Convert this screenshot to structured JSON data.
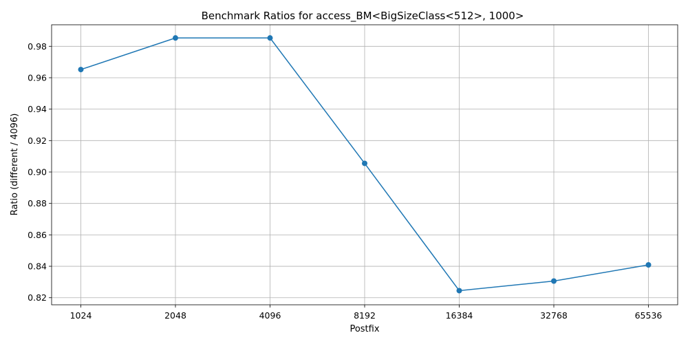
{
  "chart_data": {
    "type": "line",
    "title": "Benchmark Ratios for access_BM<BigSizeClass<512>, 1000>",
    "xlabel": "Postfix",
    "ylabel": "Ratio (different / 4096)",
    "categories": [
      "1024",
      "2048",
      "4096",
      "8192",
      "16384",
      "32768",
      "65536"
    ],
    "series": [
      {
        "values": [
          0.9652,
          0.9853,
          0.9853,
          0.9055,
          0.8245,
          0.8306,
          0.8409
        ]
      }
    ],
    "ylim": [
      0.8155,
      0.9937
    ],
    "yticks": [
      0.82,
      0.84,
      0.86,
      0.88,
      0.9,
      0.92,
      0.94,
      0.96,
      0.98
    ],
    "ytick_labels": [
      "0.82",
      "0.84",
      "0.86",
      "0.88",
      "0.90",
      "0.92",
      "0.94",
      "0.96",
      "0.98"
    ],
    "grid": true,
    "colors": {
      "line": "#1f77b4",
      "grid": "#b0b0b0",
      "axes": "#000000"
    }
  }
}
